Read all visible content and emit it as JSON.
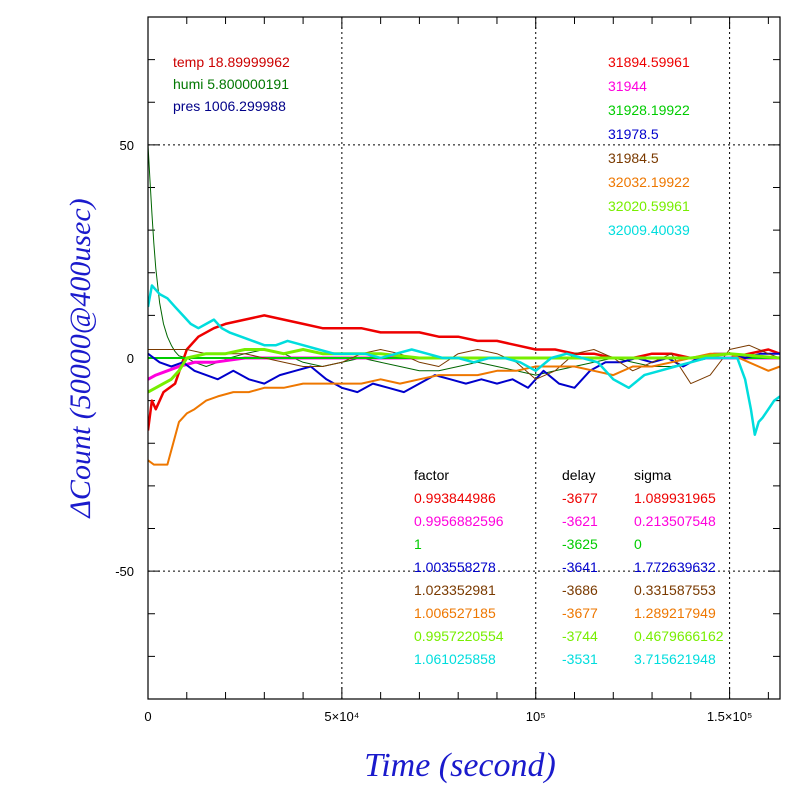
{
  "chart_data": {
    "type": "line",
    "title": "",
    "xlabel": "Time (second)",
    "ylabel": "ΔCount (50000@400usec)",
    "xlim": [
      0,
      163000
    ],
    "ylim": [
      -80,
      80
    ],
    "x_ticks": [
      {
        "value": 0,
        "label": "0"
      },
      {
        "value": 50000,
        "label": "5×10⁴"
      },
      {
        "value": 100000,
        "label": "10⁵"
      },
      {
        "value": 150000,
        "label": "1.5×10⁵"
      }
    ],
    "y_ticks": [
      {
        "value": 50,
        "label": "50"
      },
      {
        "value": 0,
        "label": "0"
      },
      {
        "value": -50,
        "label": "-50"
      }
    ],
    "grid": true,
    "env_readings": [
      {
        "name": "temp",
        "value": "18.89999962",
        "color": "#cc0000"
      },
      {
        "name": "humi",
        "value": "5.800000191",
        "color": "#007700"
      },
      {
        "name": "pres",
        "value": "1006.299988",
        "color": "#000088"
      }
    ],
    "table_headers": {
      "factor": "factor",
      "delay": "delay",
      "sigma": "sigma"
    },
    "series": [
      {
        "label": "31894.59961",
        "color": "#ee0000",
        "factor": "0.993844986",
        "delay": "-3677",
        "sigma": "1.089931965",
        "x": [
          0,
          1000,
          2000,
          4000,
          7000,
          10000,
          13000,
          17000,
          20000,
          25000,
          30000,
          35000,
          40000,
          45000,
          50000,
          55000,
          60000,
          65000,
          70000,
          75000,
          80000,
          85000,
          90000,
          95000,
          100000,
          105000,
          110000,
          115000,
          120000,
          125000,
          130000,
          135000,
          140000,
          145000,
          150000,
          155000,
          160000,
          163000
        ],
        "y": [
          -17,
          -10,
          -12,
          -8,
          -6,
          2,
          5,
          7,
          8,
          9,
          10,
          9,
          8,
          7,
          7,
          7,
          6,
          6,
          6,
          5,
          5,
          4,
          4,
          3,
          2,
          2,
          1,
          1,
          0,
          0,
          1,
          1,
          0,
          0,
          0,
          1,
          2,
          1
        ]
      },
      {
        "label": "31944",
        "color": "#ff00dd",
        "factor": "0.9956882596",
        "delay": "-3621",
        "sigma": "0.213507548",
        "x": [
          0,
          2000,
          5000,
          8000,
          12000,
          17000,
          25000,
          35000,
          50000,
          70000,
          100000,
          130000,
          163000
        ],
        "y": [
          -5,
          -4,
          -3,
          -2,
          -1,
          -1,
          0,
          0,
          0,
          0,
          0,
          0,
          0
        ]
      },
      {
        "label": "31928.19922",
        "color": "#00cc00",
        "factor": "1",
        "delay": "-3625",
        "sigma": "0",
        "x": [
          0,
          20000,
          40000,
          60000,
          80000,
          100000,
          120000,
          140000,
          163000
        ],
        "y": [
          0,
          0,
          0,
          0,
          0,
          0,
          0,
          0,
          0
        ]
      },
      {
        "label": "31978.5",
        "color": "#0000cc",
        "factor": "1.003558278",
        "delay": "-3641",
        "sigma": "1.772639632",
        "x": [
          0,
          3000,
          6000,
          9000,
          12000,
          15000,
          18000,
          22000,
          26000,
          30000,
          34000,
          38000,
          42000,
          46000,
          50000,
          54000,
          58000,
          62000,
          66000,
          70000,
          74000,
          78000,
          82000,
          86000,
          90000,
          94000,
          98000,
          102000,
          106000,
          110000,
          114000,
          118000,
          122000,
          126000,
          130000,
          134000,
          138000,
          142000,
          146000,
          150000,
          154000,
          158000,
          163000
        ],
        "y": [
          1,
          -1,
          -2,
          -1,
          -3,
          -4,
          -5,
          -3,
          -5,
          -6,
          -4,
          -3,
          -2,
          -5,
          -7,
          -8,
          -6,
          -7,
          -8,
          -6,
          -4,
          -5,
          -6,
          -5,
          -6,
          -5,
          -7,
          -3,
          -6,
          -7,
          -3,
          -1,
          -1,
          0,
          -1,
          0,
          -2,
          0,
          1,
          1,
          0,
          1,
          1
        ]
      },
      {
        "label": "31984.5",
        "color": "#7a3a00",
        "factor": "1.023352981",
        "delay": "-3686",
        "sigma": "0.331587553",
        "x": [
          0,
          5000,
          10000,
          15000,
          20000,
          25000,
          30000,
          35000,
          40000,
          45000,
          50000,
          55000,
          60000,
          65000,
          70000,
          75000,
          80000,
          85000,
          90000,
          95000,
          100000,
          105000,
          110000,
          115000,
          120000,
          125000,
          130000,
          135000,
          140000,
          145000,
          150000,
          155000,
          160000,
          163000
        ],
        "y": [
          2,
          2,
          2,
          1,
          1,
          1,
          0,
          -1,
          -2,
          -2,
          -1,
          1,
          2,
          1,
          -1,
          -2,
          1,
          2,
          1,
          -1,
          -5,
          -3,
          1,
          2,
          0,
          -3,
          -1,
          1,
          -6,
          -4,
          2,
          3,
          1,
          0
        ]
      },
      {
        "label": "32032.19922",
        "color": "#ee7700",
        "factor": "1.006527185",
        "delay": "-3677",
        "sigma": "1.289217949",
        "x": [
          0,
          1500,
          3000,
          5000,
          6500,
          8000,
          10000,
          12000,
          15000,
          18000,
          22000,
          26000,
          30000,
          35000,
          40000,
          45000,
          50000,
          55000,
          60000,
          65000,
          70000,
          75000,
          80000,
          85000,
          90000,
          95000,
          100000,
          105000,
          110000,
          115000,
          120000,
          125000,
          130000,
          135000,
          140000,
          145000,
          150000,
          155000,
          160000,
          163000
        ],
        "y": [
          -24,
          -25,
          -25,
          -25,
          -20,
          -15,
          -13,
          -12,
          -10,
          -9,
          -8,
          -8,
          -7,
          -7,
          -6,
          -6,
          -6,
          -6,
          -5,
          -6,
          -5,
          -4,
          -4,
          -4,
          -3,
          -3,
          -2,
          -2,
          -2,
          -3,
          -4,
          -2,
          -2,
          -1,
          0,
          1,
          1,
          -1,
          -3,
          -2
        ]
      },
      {
        "label": "32020.59961",
        "color": "#77ee00",
        "factor": "0.9957220554",
        "delay": "-3744",
        "sigma": "0.4679666162",
        "x": [
          0,
          2000,
          4000,
          6000,
          8000,
          10000,
          15000,
          20000,
          25000,
          30000,
          35000,
          40000,
          45000,
          50000,
          60000,
          70000,
          80000,
          90000,
          100000,
          110000,
          120000,
          130000,
          140000,
          150000,
          163000
        ],
        "y": [
          -8,
          -7,
          -6,
          -5,
          -3,
          0,
          1,
          1,
          2,
          2,
          1,
          2,
          1,
          1,
          1,
          0,
          0,
          0,
          0,
          0,
          0,
          0,
          0,
          1,
          0
        ]
      },
      {
        "label": "32009.40039",
        "color": "#00dddd",
        "factor": "1.061025858",
        "delay": "-3531",
        "sigma": "3.715621948",
        "x": [
          0,
          1000,
          2000,
          3000,
          5000,
          7000,
          9000,
          11000,
          13000,
          15000,
          17000,
          19000,
          21000,
          24000,
          27000,
          30000,
          33000,
          36000,
          40000,
          44000,
          48000,
          52000,
          56000,
          60000,
          64000,
          68000,
          72000,
          76000,
          80000,
          84000,
          88000,
          92000,
          96000,
          100000,
          104000,
          108000,
          112000,
          116000,
          120000,
          124000,
          128000,
          132000,
          136000,
          140000,
          144000,
          148000,
          152000,
          154000,
          155500,
          156500,
          157500,
          158500,
          160000,
          161500,
          163000
        ],
        "y": [
          12,
          17,
          16,
          15,
          14,
          12,
          10,
          8,
          7,
          8,
          9,
          7,
          6,
          5,
          4,
          3,
          3,
          4,
          3,
          2,
          1,
          1,
          1,
          0,
          1,
          2,
          1,
          0,
          0,
          -1,
          0,
          0,
          -1,
          -3,
          0,
          1,
          0,
          -1,
          -5,
          -7,
          -4,
          -3,
          -2,
          -1,
          0,
          0,
          0,
          -5,
          -12,
          -18,
          -15,
          -14,
          -12,
          -10,
          -9
        ]
      }
    ],
    "extra_series": [
      {
        "color": "#006600",
        "description": "decay trace",
        "x": [
          0,
          500,
          1000,
          1500,
          2000,
          3000,
          4000,
          5000,
          6000,
          7000,
          8000,
          10000,
          12000,
          15000,
          18000,
          21000,
          25000,
          30000,
          35000,
          40000,
          45000,
          50000,
          55000,
          60000,
          65000,
          70000,
          75000,
          80000,
          85000,
          90000,
          95000,
          100000,
          105000,
          110000,
          115000,
          120000,
          125000,
          130000,
          135000,
          140000,
          145000,
          150000,
          155000,
          160000,
          163000
        ],
        "y": [
          50,
          42,
          34,
          27,
          21,
          13,
          8,
          5,
          3,
          1.5,
          0.5,
          0,
          -1,
          -2,
          -1,
          0,
          1,
          2,
          1,
          -1,
          -2,
          -1,
          0,
          -1,
          -2,
          -3,
          -3,
          -2,
          -1,
          -2,
          -3,
          -4,
          -3,
          -2,
          -1,
          0,
          -1,
          -2,
          -2,
          -1,
          0,
          0,
          1,
          0,
          0
        ]
      }
    ]
  }
}
